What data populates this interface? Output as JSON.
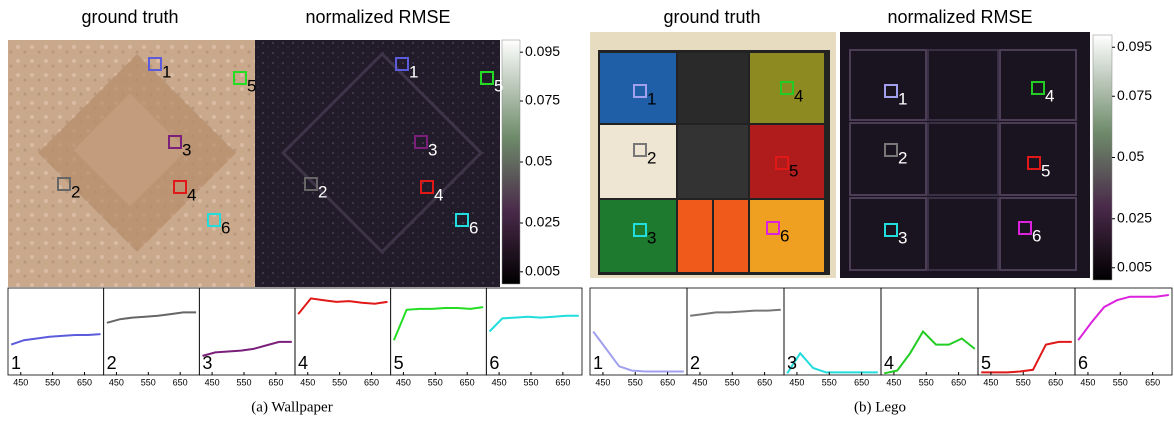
{
  "panels": [
    {
      "caption": "(a)  Wallpaper",
      "images": [
        {
          "title": "ground truth"
        },
        {
          "title": "normalized RMSE"
        }
      ],
      "colorbar": {
        "ylim": [
          0,
          0.1
        ],
        "yticks": [
          0.095,
          0.075,
          0.05,
          0.025,
          0.005
        ]
      },
      "markers": [
        {
          "label": "1",
          "color": "#5b5bdc"
        },
        {
          "label": "2",
          "color": "#666666"
        },
        {
          "label": "3",
          "color": "#7a1f7a"
        },
        {
          "label": "4",
          "color": "#e01818"
        },
        {
          "label": "5",
          "color": "#22dd22"
        },
        {
          "label": "6",
          "color": "#22dddd"
        }
      ],
      "spectrum_x": [
        420,
        460,
        500,
        540,
        580,
        620,
        660,
        700
      ],
      "xlim": [
        410,
        710
      ],
      "xticks": [
        450,
        550,
        650
      ],
      "plots": [
        {
          "label": "1",
          "color": "#5b5bdc",
          "values": [
            0.35,
            0.4,
            0.42,
            0.44,
            0.45,
            0.46,
            0.46,
            0.47
          ]
        },
        {
          "label": "2",
          "color": "#666666",
          "values": [
            0.6,
            0.64,
            0.66,
            0.67,
            0.68,
            0.7,
            0.72,
            0.72
          ]
        },
        {
          "label": "3",
          "color": "#7a1f7a",
          "values": [
            0.22,
            0.26,
            0.27,
            0.28,
            0.3,
            0.34,
            0.38,
            0.38
          ]
        },
        {
          "label": "4",
          "color": "#e01818",
          "values": [
            0.7,
            0.88,
            0.86,
            0.84,
            0.85,
            0.83,
            0.82,
            0.84
          ]
        },
        {
          "label": "5",
          "color": "#22dd22",
          "values": [
            0.4,
            0.75,
            0.76,
            0.76,
            0.77,
            0.77,
            0.76,
            0.78
          ]
        },
        {
          "label": "6",
          "color": "#22dddd",
          "values": [
            0.5,
            0.65,
            0.66,
            0.67,
            0.66,
            0.67,
            0.68,
            0.68
          ]
        }
      ]
    },
    {
      "caption": "(b)  Lego",
      "images": [
        {
          "title": "ground truth"
        },
        {
          "title": "normalized RMSE"
        }
      ],
      "colorbar": {
        "ylim": [
          0,
          0.1
        ],
        "yticks": [
          0.095,
          0.075,
          0.05,
          0.025,
          0.005
        ]
      },
      "markers": [
        {
          "label": "1",
          "color": "#a0a0ee"
        },
        {
          "label": "2",
          "color": "#777777"
        },
        {
          "label": "3",
          "color": "#22dddd"
        },
        {
          "label": "4",
          "color": "#22cc22"
        },
        {
          "label": "5",
          "color": "#e01818"
        },
        {
          "label": "6",
          "color": "#dd22dd"
        }
      ],
      "spectrum_x": [
        420,
        460,
        500,
        540,
        580,
        620,
        660,
        700
      ],
      "xlim": [
        410,
        710
      ],
      "xticks": [
        450,
        550,
        650
      ],
      "plots": [
        {
          "label": "1",
          "color": "#a0a0ee",
          "values": [
            0.5,
            0.3,
            0.1,
            0.05,
            0.04,
            0.04,
            0.04,
            0.04
          ]
        },
        {
          "label": "2",
          "color": "#777777",
          "values": [
            0.68,
            0.7,
            0.72,
            0.72,
            0.73,
            0.74,
            0.74,
            0.75
          ]
        },
        {
          "label": "3",
          "color": "#22dddd",
          "values": [
            0.02,
            0.25,
            0.08,
            0.03,
            0.03,
            0.03,
            0.03,
            0.03
          ]
        },
        {
          "label": "4",
          "color": "#22cc22",
          "values": [
            0.02,
            0.05,
            0.25,
            0.5,
            0.35,
            0.35,
            0.42,
            0.3
          ]
        },
        {
          "label": "5",
          "color": "#e01818",
          "values": [
            0.03,
            0.03,
            0.03,
            0.04,
            0.06,
            0.35,
            0.38,
            0.38
          ]
        },
        {
          "label": "6",
          "color": "#dd22dd",
          "values": [
            0.4,
            0.6,
            0.78,
            0.86,
            0.9,
            0.9,
            0.9,
            0.92
          ]
        }
      ]
    }
  ]
}
